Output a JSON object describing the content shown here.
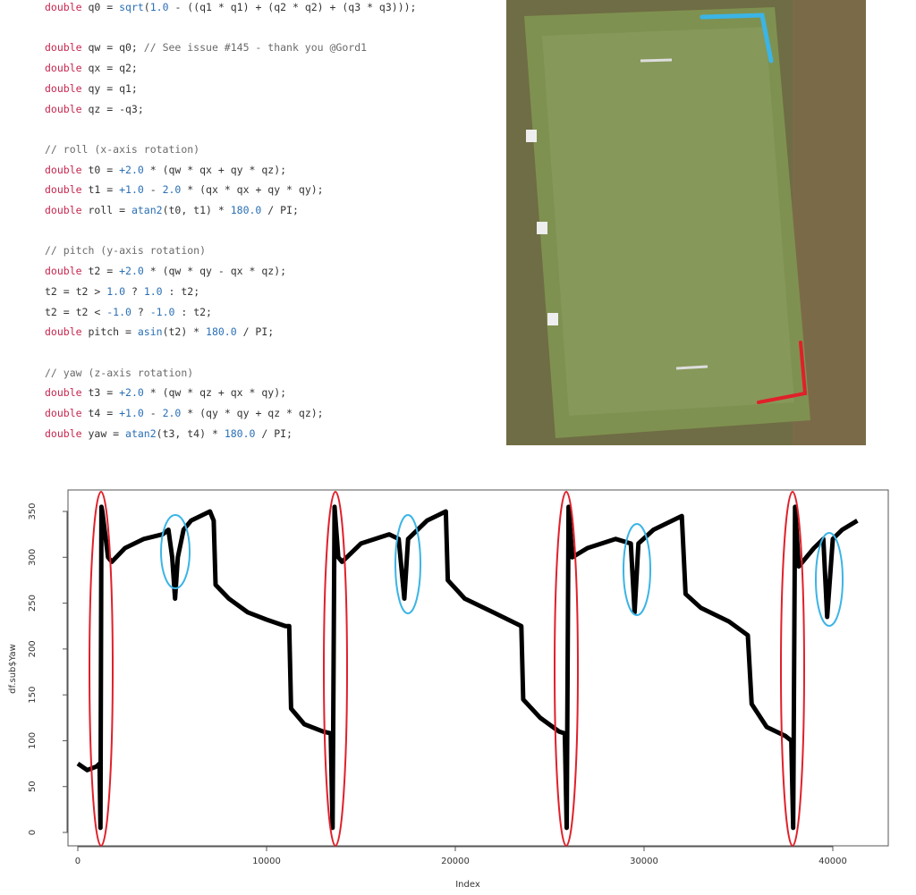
{
  "code": {
    "blocks": [
      [
        [
          "double",
          " q0 = ",
          "sqrt",
          "(",
          "1.0",
          " - ((q1 * q1) + (q2 * q2) + (q3 * q3)));"
        ]
      ],
      [
        [
          "double",
          " qw = q0; ",
          "// See issue #145 - thank you @Gord1"
        ],
        [
          "double",
          " qx = q2;"
        ],
        [
          "double",
          " qy = q1;"
        ],
        [
          "double",
          " qz = -q3;"
        ]
      ],
      [
        [
          "// roll (x-axis rotation)"
        ],
        [
          "double",
          " t0 = ",
          "+2.0",
          " * (qw * qx + qy * qz);"
        ],
        [
          "double",
          " t1 = ",
          "+1.0",
          " - ",
          "2.0",
          " * (qx * qx + qy * qy);"
        ],
        [
          "double",
          " roll = ",
          "atan2",
          "(t0, t1) * ",
          "180.0",
          " / PI;"
        ]
      ],
      [
        [
          "// pitch (y-axis rotation)"
        ],
        [
          "double",
          " t2 = ",
          "+2.0",
          " * (qw * qy - qx * qz);"
        ],
        [
          "t2 = t2 > ",
          "1.0",
          " ? ",
          "1.0",
          " : t2;"
        ],
        [
          "t2 = t2 < ",
          "-1.0",
          " ? ",
          "-1.0",
          " : t2;"
        ],
        [
          "double",
          " pitch = ",
          "asin",
          "(t2) * ",
          "180.0",
          " / PI;"
        ]
      ],
      [
        [
          "// yaw (z-axis rotation)"
        ],
        [
          "double",
          " t3 = ",
          "+2.0",
          " * (qw * qz + qx * qy);"
        ],
        [
          "double",
          " t4 = ",
          "+1.0",
          " - ",
          "2.0",
          " * (qy * qy + qz * qz);"
        ],
        [
          "double",
          " yaw = ",
          "atan2",
          "(t3, t4) * ",
          "180.0",
          " / PI;"
        ]
      ]
    ]
  },
  "chart_data": {
    "type": "line",
    "x_label": "Index",
    "y_label": "df.sub$Yaw",
    "color": "#000000",
    "x": [
      0,
      500,
      1000,
      1150,
      1200,
      1250,
      1300,
      1600,
      1800,
      2500,
      3500,
      4500,
      4800,
      5000,
      5150,
      5300,
      5600,
      6000,
      7000,
      7200,
      7300,
      8000,
      9000,
      10000,
      11000,
      11200,
      11300,
      12000,
      13000,
      13400,
      13500,
      13600,
      13800,
      14000,
      15000,
      16500,
      17000,
      17300,
      17500,
      18500,
      19500,
      19600,
      20500,
      22000,
      23500,
      23600,
      24500,
      25500,
      25800,
      25900,
      26000,
      26200,
      27000,
      28500,
      29300,
      29500,
      29700,
      30500,
      31500,
      32000,
      32200,
      33000,
      34500,
      35500,
      35700,
      36500,
      37500,
      37800,
      37900,
      38000,
      38200,
      39000,
      39500,
      39700,
      40000,
      40500,
      41300
    ],
    "values": [
      75,
      68,
      72,
      75,
      5,
      355,
      350,
      300,
      295,
      310,
      320,
      325,
      330,
      300,
      255,
      300,
      330,
      340,
      350,
      340,
      270,
      255,
      240,
      232,
      225,
      225,
      135,
      118,
      110,
      108,
      5,
      355,
      300,
      295,
      315,
      325,
      320,
      255,
      320,
      340,
      350,
      275,
      255,
      240,
      225,
      145,
      125,
      110,
      108,
      5,
      355,
      300,
      310,
      320,
      315,
      240,
      315,
      330,
      340,
      345,
      260,
      245,
      230,
      215,
      140,
      115,
      105,
      100,
      5,
      355,
      290,
      310,
      320,
      235,
      320,
      330,
      340
    ],
    "xlim": [
      -521,
      42939
    ],
    "ylim": [
      -14.6,
      373.4
    ],
    "xticks": [
      0,
      10000,
      20000,
      30000,
      40000
    ],
    "yticks": [
      0,
      50,
      100,
      150,
      200,
      250,
      300,
      350
    ]
  }
}
